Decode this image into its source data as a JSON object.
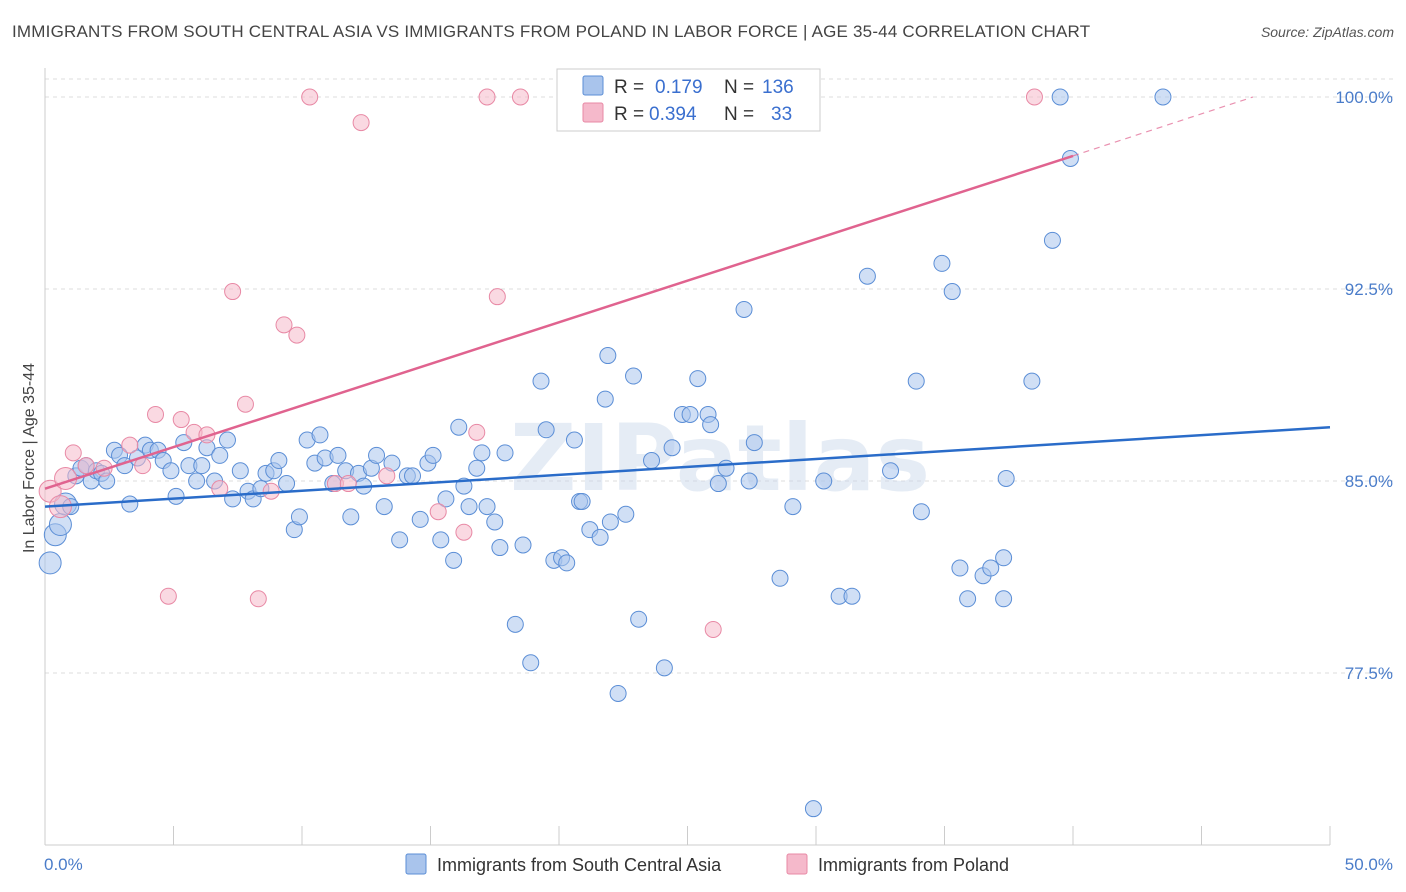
{
  "header": {
    "title": "IMMIGRANTS FROM SOUTH CENTRAL ASIA VS IMMIGRANTS FROM POLAND IN LABOR FORCE | AGE 35-44 CORRELATION CHART",
    "source": "Source: ZipAtlas.com"
  },
  "colors": {
    "blue": "#5b8ed6",
    "blue_fill": "#a9c4ec",
    "blue_line": "#2a6cc9",
    "pink": "#e889a5",
    "pink_fill": "#f5b9cb",
    "pink_line": "#e0638f",
    "tick_text": "#4a7cc9",
    "grid": "#dddddd"
  },
  "legend": {
    "rows": [
      {
        "r_label": "R =",
        "r_value": "0.179",
        "n_label": "N =",
        "n_value": "136"
      },
      {
        "r_label": "R =",
        "r_value": "0.394",
        "n_label": "N =",
        "n_value": "33"
      }
    ]
  },
  "watermark": "ZIPatlas",
  "chart_data": {
    "type": "scatter",
    "title": "IMMIGRANTS FROM SOUTH CENTRAL ASIA VS IMMIGRANTS FROM POLAND IN LABOR FORCE | AGE 35-44 CORRELATION CHART",
    "xlabel": "",
    "ylabel": "In Labor Force | Age 35-44",
    "xlim": [
      0,
      50
    ],
    "ylim": [
      71.5,
      101.5
    ],
    "x_tick_labels": [
      "0.0%",
      "50.0%"
    ],
    "y_ticks": [
      77.5,
      85.0,
      92.5,
      100.0
    ],
    "y_tick_labels": [
      "77.5%",
      "85.0%",
      "92.5%",
      "100.0%"
    ],
    "grid": true,
    "series": [
      {
        "name": "Immigrants from South Central Asia",
        "trend": {
          "x": [
            0,
            50
          ],
          "y": [
            84.0,
            87.1
          ]
        },
        "points": [
          [
            0.2,
            81.8
          ],
          [
            0.4,
            82.9
          ],
          [
            0.6,
            83.3
          ],
          [
            0.8,
            84.1
          ],
          [
            1.0,
            84.0
          ],
          [
            1.2,
            85.2
          ],
          [
            1.4,
            85.5
          ],
          [
            1.6,
            85.6
          ],
          [
            1.8,
            85.0
          ],
          [
            2.0,
            85.4
          ],
          [
            2.2,
            85.3
          ],
          [
            2.4,
            85.0
          ],
          [
            2.7,
            86.2
          ],
          [
            2.9,
            86.0
          ],
          [
            3.1,
            85.6
          ],
          [
            3.3,
            84.1
          ],
          [
            3.6,
            85.9
          ],
          [
            3.9,
            86.4
          ],
          [
            4.1,
            86.2
          ],
          [
            4.4,
            86.2
          ],
          [
            4.6,
            85.8
          ],
          [
            4.9,
            85.4
          ],
          [
            5.1,
            84.4
          ],
          [
            5.4,
            86.5
          ],
          [
            5.6,
            85.6
          ],
          [
            5.9,
            85.0
          ],
          [
            6.1,
            85.6
          ],
          [
            6.3,
            86.3
          ],
          [
            6.6,
            85.0
          ],
          [
            6.8,
            86.0
          ],
          [
            7.1,
            86.6
          ],
          [
            7.3,
            84.3
          ],
          [
            7.6,
            85.4
          ],
          [
            7.9,
            84.6
          ],
          [
            8.1,
            84.3
          ],
          [
            8.4,
            84.7
          ],
          [
            8.6,
            85.3
          ],
          [
            8.9,
            85.4
          ],
          [
            9.1,
            85.8
          ],
          [
            9.4,
            84.9
          ],
          [
            9.7,
            83.1
          ],
          [
            9.9,
            83.6
          ],
          [
            10.2,
            86.6
          ],
          [
            10.5,
            85.7
          ],
          [
            10.7,
            86.8
          ],
          [
            10.9,
            85.9
          ],
          [
            11.2,
            84.9
          ],
          [
            11.4,
            86.0
          ],
          [
            11.7,
            85.4
          ],
          [
            11.9,
            83.6
          ],
          [
            12.2,
            85.3
          ],
          [
            12.4,
            84.8
          ],
          [
            12.7,
            85.5
          ],
          [
            12.9,
            86.0
          ],
          [
            13.2,
            84.0
          ],
          [
            13.5,
            85.7
          ],
          [
            13.8,
            82.7
          ],
          [
            14.1,
            85.2
          ],
          [
            14.3,
            85.2
          ],
          [
            14.6,
            83.5
          ],
          [
            14.9,
            85.7
          ],
          [
            15.1,
            86.0
          ],
          [
            15.4,
            82.7
          ],
          [
            15.6,
            84.3
          ],
          [
            15.9,
            81.9
          ],
          [
            16.1,
            87.1
          ],
          [
            16.3,
            84.8
          ],
          [
            16.5,
            84.0
          ],
          [
            16.8,
            85.5
          ],
          [
            17.0,
            86.1
          ],
          [
            17.2,
            84.0
          ],
          [
            17.5,
            83.4
          ],
          [
            17.7,
            82.4
          ],
          [
            17.9,
            86.1
          ],
          [
            18.3,
            79.4
          ],
          [
            18.6,
            82.5
          ],
          [
            18.9,
            77.9
          ],
          [
            19.3,
            88.9
          ],
          [
            19.5,
            87.0
          ],
          [
            19.8,
            81.9
          ],
          [
            20.1,
            82.0
          ],
          [
            20.3,
            81.8
          ],
          [
            20.6,
            86.6
          ],
          [
            20.8,
            84.2
          ],
          [
            20.9,
            84.2
          ],
          [
            21.2,
            83.1
          ],
          [
            21.6,
            82.8
          ],
          [
            21.8,
            88.2
          ],
          [
            21.9,
            89.9
          ],
          [
            22.0,
            83.4
          ],
          [
            22.3,
            76.7
          ],
          [
            22.6,
            83.7
          ],
          [
            22.9,
            89.1
          ],
          [
            23.1,
            79.6
          ],
          [
            23.6,
            85.8
          ],
          [
            24.1,
            77.7
          ],
          [
            24.4,
            86.3
          ],
          [
            24.8,
            87.6
          ],
          [
            25.1,
            87.6
          ],
          [
            25.4,
            89.0
          ],
          [
            25.8,
            87.6
          ],
          [
            25.9,
            87.2
          ],
          [
            26.2,
            84.9
          ],
          [
            26.5,
            85.5
          ],
          [
            27.2,
            91.7
          ],
          [
            27.4,
            85.0
          ],
          [
            27.6,
            86.5
          ],
          [
            28.6,
            81.2
          ],
          [
            29.1,
            84.0
          ],
          [
            29.9,
            72.2
          ],
          [
            30.3,
            85.0
          ],
          [
            30.9,
            80.5
          ],
          [
            31.4,
            80.5
          ],
          [
            32.0,
            93.0
          ],
          [
            32.9,
            85.4
          ],
          [
            33.9,
            88.9
          ],
          [
            34.1,
            83.8
          ],
          [
            34.9,
            93.5
          ],
          [
            35.3,
            92.4
          ],
          [
            35.6,
            81.6
          ],
          [
            35.9,
            80.4
          ],
          [
            36.5,
            81.3
          ],
          [
            36.8,
            81.6
          ],
          [
            37.3,
            82.0
          ],
          [
            37.3,
            80.4
          ],
          [
            37.4,
            85.1
          ],
          [
            38.4,
            88.9
          ],
          [
            39.2,
            94.4
          ],
          [
            39.5,
            100.0
          ],
          [
            39.9,
            97.6
          ],
          [
            43.5,
            100.0
          ]
        ]
      },
      {
        "name": "Immigrants from Poland",
        "trend": {
          "x": [
            0,
            40
          ],
          "y": [
            84.7,
            97.7
          ]
        },
        "trend_dashed": {
          "x": [
            40,
            47
          ],
          "y": [
            97.7,
            100.0
          ]
        },
        "points": [
          [
            0.2,
            84.6
          ],
          [
            0.6,
            84.0
          ],
          [
            0.8,
            85.1
          ],
          [
            1.1,
            86.1
          ],
          [
            1.6,
            85.6
          ],
          [
            2.3,
            85.5
          ],
          [
            3.3,
            86.4
          ],
          [
            3.8,
            85.6
          ],
          [
            4.3,
            87.6
          ],
          [
            4.8,
            80.5
          ],
          [
            5.3,
            87.4
          ],
          [
            5.8,
            86.9
          ],
          [
            6.3,
            86.8
          ],
          [
            6.8,
            84.7
          ],
          [
            7.3,
            92.4
          ],
          [
            7.8,
            88.0
          ],
          [
            8.3,
            80.4
          ],
          [
            8.8,
            84.6
          ],
          [
            9.3,
            91.1
          ],
          [
            9.8,
            90.7
          ],
          [
            10.3,
            100.0
          ],
          [
            11.3,
            84.9
          ],
          [
            11.8,
            84.9
          ],
          [
            12.3,
            99.0
          ],
          [
            13.3,
            85.2
          ],
          [
            15.3,
            83.8
          ],
          [
            16.3,
            83.0
          ],
          [
            16.8,
            86.9
          ],
          [
            17.2,
            100.0
          ],
          [
            17.6,
            92.2
          ],
          [
            18.5,
            100.0
          ],
          [
            26.0,
            79.2
          ],
          [
            38.5,
            100.0
          ]
        ]
      }
    ],
    "legend_position": "top-center"
  },
  "bottom_legend": [
    {
      "label": "Immigrants from South Central Asia"
    },
    {
      "label": "Immigrants from Poland"
    }
  ]
}
